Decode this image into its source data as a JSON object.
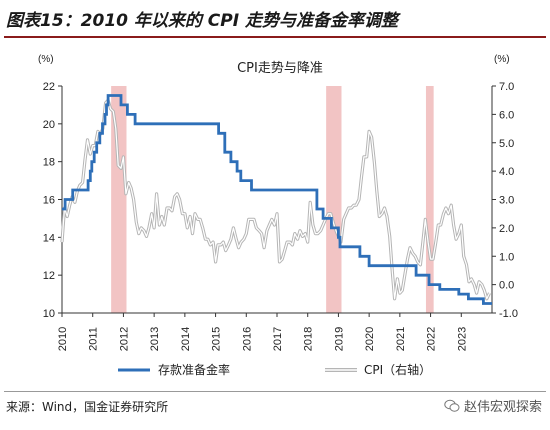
{
  "figure_title": "图表15：2010 年以来的 CPI 走势与准备金率调整",
  "source": "来源：Wind，国金证券研究所",
  "watermark": "赵伟宏观探索",
  "colors": {
    "rrr": "#2e6fb8",
    "cpi": "#b5b5b5",
    "shade": "#f2c4c4",
    "axis": "#333333"
  },
  "chart_data": {
    "type": "line",
    "title": "CPI走势与降准",
    "left_unit": "(%)",
    "right_unit": "(%)",
    "left_ylim": [
      10,
      22
    ],
    "left_ticks": [
      10,
      12,
      14,
      16,
      18,
      20,
      22
    ],
    "right_ylim": [
      -1,
      7
    ],
    "right_ticks": [
      "7.0",
      "6.0",
      "5.0",
      "4.0",
      "3.0",
      "2.0",
      "1.0",
      "0.0",
      "-1.0"
    ],
    "right_tick_values": [
      7,
      6,
      5,
      4,
      3,
      2,
      1,
      0,
      -1
    ],
    "xlim": [
      2010,
      2024
    ],
    "x_ticks": [
      "2010",
      "2011",
      "2012",
      "2013",
      "2014",
      "2015",
      "2016",
      "2017",
      "2018",
      "2019",
      "2020",
      "2021",
      "2022",
      "2023"
    ],
    "shaded_periods": [
      [
        2011.6,
        2012.1
      ],
      [
        2018.6,
        2019.1
      ],
      [
        2021.85,
        2022.1
      ]
    ],
    "series": [
      {
        "name": "存款准备金率",
        "axis": "left",
        "style": "step",
        "points": [
          [
            2010.0,
            15.5
          ],
          [
            2010.1,
            16.0
          ],
          [
            2010.35,
            16.5
          ],
          [
            2010.85,
            17.0
          ],
          [
            2010.92,
            17.5
          ],
          [
            2010.97,
            18.0
          ],
          [
            2011.05,
            18.5
          ],
          [
            2011.13,
            19.0
          ],
          [
            2011.23,
            19.5
          ],
          [
            2011.32,
            20.0
          ],
          [
            2011.4,
            20.5
          ],
          [
            2011.45,
            21.0
          ],
          [
            2011.5,
            21.5
          ],
          [
            2011.92,
            21.0
          ],
          [
            2012.13,
            20.5
          ],
          [
            2012.38,
            20.0
          ],
          [
            2015.1,
            19.5
          ],
          [
            2015.3,
            18.5
          ],
          [
            2015.5,
            18.0
          ],
          [
            2015.7,
            17.5
          ],
          [
            2015.82,
            17.0
          ],
          [
            2016.17,
            16.5
          ],
          [
            2018.3,
            15.5
          ],
          [
            2018.5,
            15.0
          ],
          [
            2018.77,
            14.5
          ],
          [
            2019.0,
            14.0
          ],
          [
            2019.05,
            13.5
          ],
          [
            2019.7,
            13.0
          ],
          [
            2020.0,
            12.5
          ],
          [
            2021.53,
            12.0
          ],
          [
            2021.95,
            11.5
          ],
          [
            2022.3,
            11.25
          ],
          [
            2022.92,
            11.0
          ],
          [
            2023.23,
            10.75
          ],
          [
            2023.72,
            10.5
          ],
          [
            2024.0,
            10.5
          ]
        ]
      },
      {
        "name": "CPI（右轴）",
        "axis": "right",
        "style": "double",
        "points": [
          [
            2010.0,
            1.5
          ],
          [
            2010.08,
            2.7
          ],
          [
            2010.17,
            2.4
          ],
          [
            2010.25,
            2.8
          ],
          [
            2010.33,
            3.1
          ],
          [
            2010.42,
            2.9
          ],
          [
            2010.5,
            3.3
          ],
          [
            2010.58,
            3.5
          ],
          [
            2010.67,
            3.6
          ],
          [
            2010.75,
            4.4
          ],
          [
            2010.83,
            5.1
          ],
          [
            2010.92,
            4.6
          ],
          [
            2011.0,
            4.9
          ],
          [
            2011.08,
            4.9
          ],
          [
            2011.17,
            5.4
          ],
          [
            2011.25,
            5.3
          ],
          [
            2011.33,
            5.5
          ],
          [
            2011.42,
            6.4
          ],
          [
            2011.5,
            6.5
          ],
          [
            2011.58,
            6.2
          ],
          [
            2011.67,
            6.1
          ],
          [
            2011.75,
            5.5
          ],
          [
            2011.83,
            4.2
          ],
          [
            2011.92,
            4.1
          ],
          [
            2012.0,
            4.5
          ],
          [
            2012.08,
            3.2
          ],
          [
            2012.17,
            3.6
          ],
          [
            2012.25,
            3.4
          ],
          [
            2012.33,
            3.0
          ],
          [
            2012.42,
            2.2
          ],
          [
            2012.5,
            1.8
          ],
          [
            2012.58,
            2.0
          ],
          [
            2012.67,
            1.9
          ],
          [
            2012.75,
            1.7
          ],
          [
            2012.83,
            2.0
          ],
          [
            2012.92,
            2.5
          ],
          [
            2013.0,
            2.0
          ],
          [
            2013.08,
            3.2
          ],
          [
            2013.17,
            2.1
          ],
          [
            2013.25,
            2.4
          ],
          [
            2013.33,
            2.1
          ],
          [
            2013.42,
            2.7
          ],
          [
            2013.5,
            2.7
          ],
          [
            2013.58,
            2.6
          ],
          [
            2013.67,
            3.1
          ],
          [
            2013.75,
            3.2
          ],
          [
            2013.83,
            3.0
          ],
          [
            2013.92,
            2.5
          ],
          [
            2014.0,
            2.5
          ],
          [
            2014.08,
            2.0
          ],
          [
            2014.17,
            2.4
          ],
          [
            2014.25,
            1.8
          ],
          [
            2014.33,
            2.5
          ],
          [
            2014.42,
            2.3
          ],
          [
            2014.5,
            2.3
          ],
          [
            2014.58,
            2.0
          ],
          [
            2014.67,
            1.6
          ],
          [
            2014.75,
            1.6
          ],
          [
            2014.83,
            1.4
          ],
          [
            2014.92,
            1.5
          ],
          [
            2015.0,
            0.8
          ],
          [
            2015.08,
            1.4
          ],
          [
            2015.17,
            1.4
          ],
          [
            2015.25,
            1.5
          ],
          [
            2015.33,
            1.2
          ],
          [
            2015.42,
            1.4
          ],
          [
            2015.5,
            1.6
          ],
          [
            2015.58,
            2.0
          ],
          [
            2015.67,
            1.6
          ],
          [
            2015.75,
            1.3
          ],
          [
            2015.83,
            1.5
          ],
          [
            2015.92,
            1.6
          ],
          [
            2016.0,
            1.8
          ],
          [
            2016.08,
            2.3
          ],
          [
            2016.17,
            2.3
          ],
          [
            2016.25,
            2.3
          ],
          [
            2016.33,
            2.0
          ],
          [
            2016.42,
            1.9
          ],
          [
            2016.5,
            1.8
          ],
          [
            2016.58,
            1.3
          ],
          [
            2016.67,
            1.9
          ],
          [
            2016.75,
            2.1
          ],
          [
            2016.83,
            2.3
          ],
          [
            2016.92,
            2.1
          ],
          [
            2017.0,
            2.5
          ],
          [
            2017.08,
            0.8
          ],
          [
            2017.17,
            0.9
          ],
          [
            2017.25,
            1.2
          ],
          [
            2017.33,
            1.5
          ],
          [
            2017.42,
            1.5
          ],
          [
            2017.5,
            1.4
          ],
          [
            2017.58,
            1.8
          ],
          [
            2017.67,
            1.6
          ],
          [
            2017.75,
            1.9
          ],
          [
            2017.83,
            1.7
          ],
          [
            2017.92,
            1.8
          ],
          [
            2018.0,
            1.5
          ],
          [
            2018.08,
            2.9
          ],
          [
            2018.17,
            2.1
          ],
          [
            2018.25,
            1.8
          ],
          [
            2018.33,
            1.8
          ],
          [
            2018.42,
            1.9
          ],
          [
            2018.5,
            2.1
          ],
          [
            2018.58,
            2.3
          ],
          [
            2018.67,
            2.5
          ],
          [
            2018.75,
            2.5
          ],
          [
            2018.83,
            2.2
          ],
          [
            2018.92,
            1.9
          ],
          [
            2019.0,
            1.7
          ],
          [
            2019.08,
            1.5
          ],
          [
            2019.17,
            2.3
          ],
          [
            2019.25,
            2.5
          ],
          [
            2019.33,
            2.7
          ],
          [
            2019.42,
            2.7
          ],
          [
            2019.5,
            2.8
          ],
          [
            2019.58,
            2.8
          ],
          [
            2019.67,
            3.0
          ],
          [
            2019.75,
            3.8
          ],
          [
            2019.83,
            4.5
          ],
          [
            2019.92,
            4.5
          ],
          [
            2020.0,
            5.4
          ],
          [
            2020.08,
            5.2
          ],
          [
            2020.17,
            4.3
          ],
          [
            2020.25,
            3.3
          ],
          [
            2020.33,
            2.4
          ],
          [
            2020.42,
            2.5
          ],
          [
            2020.5,
            2.7
          ],
          [
            2020.58,
            2.4
          ],
          [
            2020.67,
            1.7
          ],
          [
            2020.75,
            0.5
          ],
          [
            2020.83,
            -0.5
          ],
          [
            2020.92,
            0.2
          ],
          [
            2021.0,
            -0.3
          ],
          [
            2021.08,
            -0.2
          ],
          [
            2021.17,
            0.4
          ],
          [
            2021.25,
            0.9
          ],
          [
            2021.33,
            1.3
          ],
          [
            2021.42,
            1.1
          ],
          [
            2021.5,
            1.0
          ],
          [
            2021.58,
            0.8
          ],
          [
            2021.67,
            0.7
          ],
          [
            2021.75,
            1.5
          ],
          [
            2021.83,
            2.3
          ],
          [
            2021.92,
            1.5
          ],
          [
            2022.0,
            0.9
          ],
          [
            2022.08,
            0.9
          ],
          [
            2022.17,
            1.5
          ],
          [
            2022.25,
            2.1
          ],
          [
            2022.33,
            2.1
          ],
          [
            2022.42,
            2.5
          ],
          [
            2022.5,
            2.7
          ],
          [
            2022.58,
            2.5
          ],
          [
            2022.67,
            2.8
          ],
          [
            2022.75,
            2.1
          ],
          [
            2022.83,
            1.6
          ],
          [
            2022.92,
            1.8
          ],
          [
            2023.0,
            2.1
          ],
          [
            2023.08,
            1.0
          ],
          [
            2023.17,
            0.7
          ],
          [
            2023.25,
            0.1
          ],
          [
            2023.33,
            0.2
          ],
          [
            2023.42,
            0.0
          ],
          [
            2023.5,
            -0.3
          ],
          [
            2023.58,
            0.1
          ],
          [
            2023.67,
            0.0
          ],
          [
            2023.75,
            -0.2
          ],
          [
            2023.83,
            -0.5
          ],
          [
            2023.92,
            -0.3
          ]
        ]
      }
    ],
    "legend": {
      "position": "bottom",
      "rrr_label": "存款准备金率",
      "cpi_label": "CPI（右轴）"
    }
  }
}
